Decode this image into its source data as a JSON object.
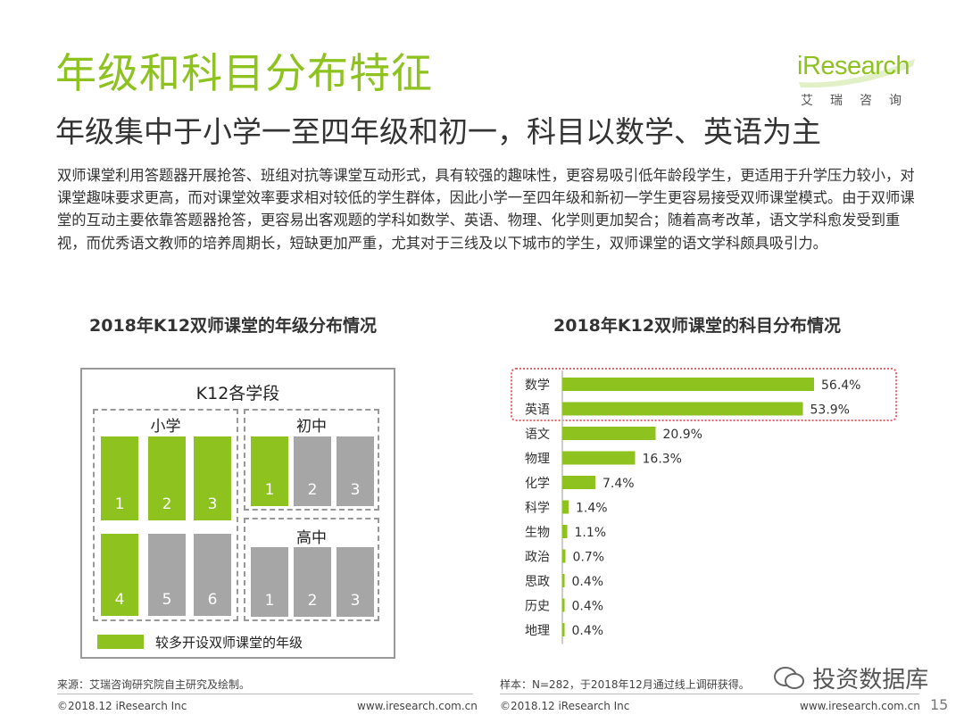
{
  "header": {
    "title": "年级和科目分布特征",
    "subtitle": "年级集中于小学一至四年级和初一，科目以数学、英语为主",
    "logo_text": "iResearch",
    "logo_cn": "艾瑞咨询"
  },
  "body_text": "双师课堂利用答题器开展抢答、班组对抗等课堂互动形式，具有较强的趣味性，更容易吸引低年龄段学生，更适用于升学压力较小，对课堂趣味要求更高，而对课堂效率要求相对较低的学生群体，因此小学一至四年级和新初一学生更容易接受双师课堂模式。由于双师课堂的互动主要依靠答题器抢答，更容易出客观题的学科如数学、英语、物理、化学则更加契合；随着高考改革，语文学科愈发受到重视，而优秀语文教师的培养周期长，短缺更加严重，尤其对于三线及以下城市的学生，双师课堂的语文学科颇具吸引力。",
  "grade_chart": {
    "title": "2018年K12双师课堂的年级分布情况",
    "box_title": "K12各学段",
    "sections": {
      "primary": {
        "label": "小学",
        "grades": [
          "1",
          "2",
          "3",
          "4",
          "5",
          "6"
        ],
        "highlighted": [
          true,
          true,
          true,
          true,
          false,
          false
        ]
      },
      "junior": {
        "label": "初中",
        "grades": [
          "1",
          "2",
          "3"
        ],
        "highlighted": [
          true,
          false,
          false
        ]
      },
      "senior": {
        "label": "高中",
        "grades": [
          "1",
          "2",
          "3"
        ],
        "highlighted": [
          false,
          false,
          false
        ]
      }
    },
    "legend": "较多开设双师课堂的年级"
  },
  "chart_data": {
    "type": "bar",
    "orientation": "horizontal",
    "title": "2018年K12双师课堂的科目分布情况",
    "categories": [
      "数学",
      "英语",
      "语文",
      "物理",
      "化学",
      "科学",
      "生物",
      "政治",
      "思政",
      "历史",
      "地理"
    ],
    "values": [
      56.4,
      53.9,
      20.9,
      16.3,
      7.4,
      1.4,
      1.1,
      0.7,
      0.4,
      0.4,
      0.4
    ],
    "value_labels": [
      "56.4%",
      "53.9%",
      "20.9%",
      "16.3%",
      "7.4%",
      "1.4%",
      "1.1%",
      "0.7%",
      "0.4%",
      "0.4%",
      "0.4%"
    ],
    "highlighted": [
      "数学",
      "英语"
    ],
    "xlim": [
      0,
      60
    ],
    "color": "#8dc21f",
    "grid": false
  },
  "footer": {
    "left_source": "来源：艾瑞咨询研究院自主研究及绘制。",
    "right_source": "样本：N=282，于2018年12月通过线上调研获得。",
    "copyright_left": "©2018.12 iResearch Inc",
    "url_left": "www.iresearch.com.cn",
    "copyright_right": "©2018.12 iResearch Inc",
    "url_right": "www.iresearch.com.cn",
    "watermark": "投资数据库",
    "page": "15"
  },
  "colors": {
    "accent": "#8dc21f",
    "gray_block": "#a6a6a6",
    "highlight_border": "#e0666b"
  }
}
